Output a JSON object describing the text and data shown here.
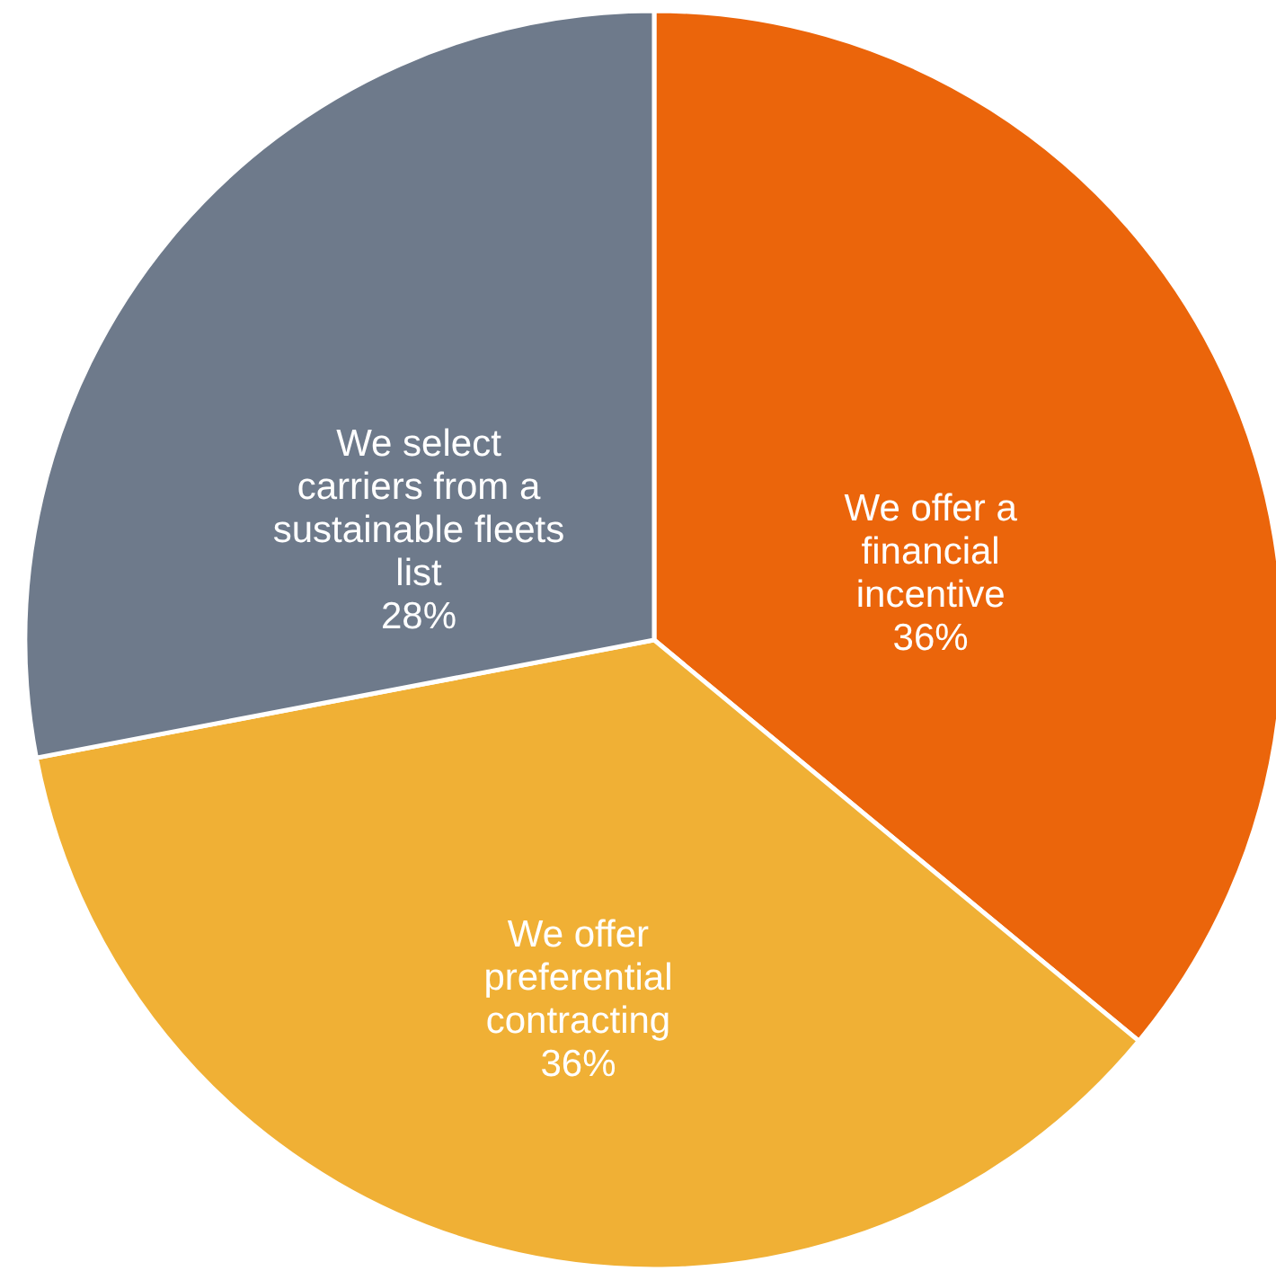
{
  "chart_data": {
    "type": "pie",
    "categories": [
      "We offer a financial incentive",
      "We offer preferential contracting",
      "We select carriers from a sustainable fleets list"
    ],
    "values": [
      36,
      36,
      28
    ],
    "colors": [
      "#eb650b",
      "#f0b035",
      "#6e7a8b"
    ],
    "value_labels": [
      "36%",
      "36%",
      "28%"
    ]
  }
}
